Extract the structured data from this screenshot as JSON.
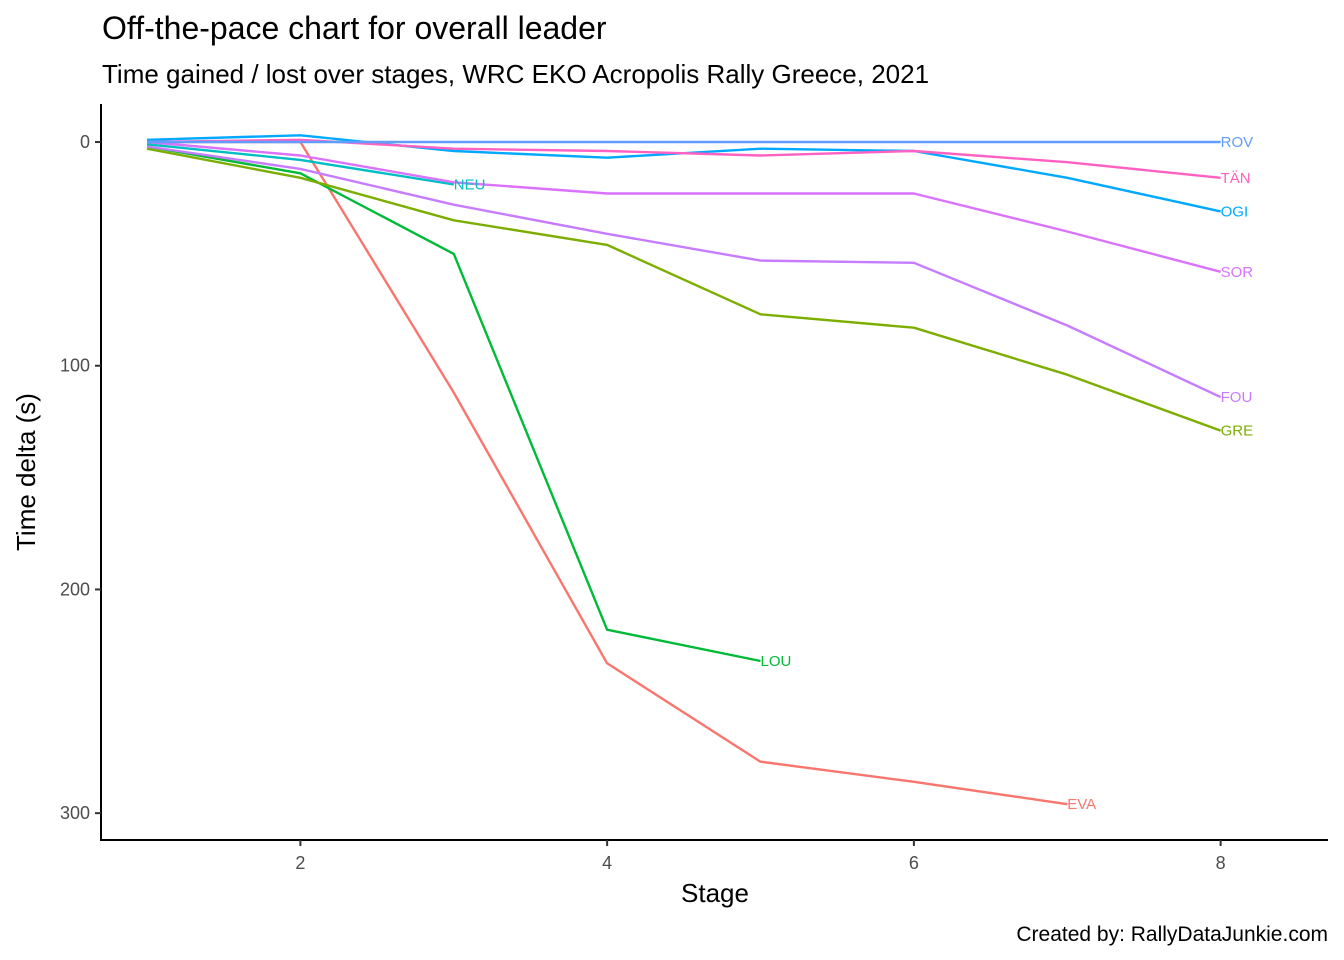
{
  "chart_data": {
    "type": "line",
    "title": "Off-the-pace chart for overall leader",
    "subtitle": "Time gained / lost over stages, WRC EKO Acropolis Rally Greece, 2021",
    "xlabel": "Stage",
    "ylabel": "Time delta (s)",
    "caption": "Created by: RallyDataJunkie.com",
    "xlim": [
      0.7,
      8.7
    ],
    "ylim": [
      -17,
      312
    ],
    "y_reversed": true,
    "x_ticks": [
      2,
      4,
      6,
      8
    ],
    "x_tick_labels": [
      "2",
      "4",
      "6",
      "8"
    ],
    "y_ticks": [
      0,
      100,
      200,
      300
    ],
    "y_tick_labels": [
      "0",
      "100",
      "200",
      "300"
    ],
    "grid": false,
    "legend": "none",
    "series": [
      {
        "name": "ROV",
        "color": "#619CFF",
        "x": [
          1,
          2,
          3,
          4,
          5,
          6,
          7,
          8
        ],
        "y": [
          0,
          0,
          0,
          0,
          0,
          0,
          0,
          0
        ]
      },
      {
        "name": "TÄN",
        "color": "#FF61C3",
        "x": [
          1,
          2,
          3,
          4,
          5,
          6,
          7,
          8
        ],
        "y": [
          0,
          -1,
          3,
          4,
          6,
          4,
          9,
          16
        ]
      },
      {
        "name": "OGI",
        "color": "#00A9FF",
        "x": [
          1,
          2,
          3,
          4,
          5,
          6,
          7,
          8
        ],
        "y": [
          -1,
          -3,
          4,
          7,
          3,
          4,
          16,
          31
        ]
      },
      {
        "name": "SOR",
        "color": "#DB72FB",
        "x": [
          1,
          2,
          3,
          4,
          5,
          6,
          7,
          8
        ],
        "y": [
          0,
          6,
          18,
          23,
          23,
          23,
          40,
          58
        ]
      },
      {
        "name": "NEU",
        "color": "#00BFC4",
        "x": [
          1,
          2,
          3
        ],
        "y": [
          1,
          8,
          19
        ]
      },
      {
        "name": "FOU",
        "color": "#C77CFF",
        "x": [
          1,
          2,
          3,
          4,
          5,
          6,
          7,
          8
        ],
        "y": [
          2,
          12,
          28,
          41,
          53,
          54,
          82,
          114
        ]
      },
      {
        "name": "GRE",
        "color": "#7CAE00",
        "x": [
          1,
          2,
          3,
          4,
          5,
          6,
          7,
          8
        ],
        "y": [
          3,
          16,
          35,
          46,
          77,
          83,
          104,
          129
        ]
      },
      {
        "name": "LOU",
        "color": "#00BA38",
        "x": [
          1,
          2,
          3,
          4,
          5
        ],
        "y": [
          2,
          14,
          50,
          218,
          232
        ]
      },
      {
        "name": "EVA",
        "color": "#F8766D",
        "x": [
          1,
          2,
          3,
          4,
          5,
          6,
          7
        ],
        "y": [
          0,
          0,
          112,
          233,
          277,
          286,
          296
        ]
      }
    ]
  }
}
